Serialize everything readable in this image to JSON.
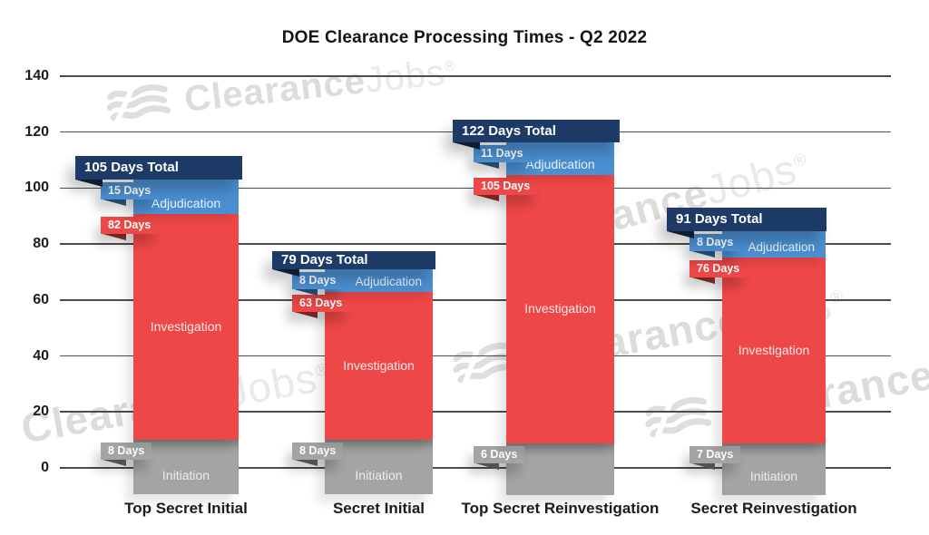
{
  "chart_data": {
    "type": "bar",
    "stacked": true,
    "title": "DOE Clearance Processing Times - Q2 2022",
    "categories": [
      "Top Secret Initial",
      "Secret Initial",
      "Top Secret Reinvestigation",
      "Secret Reinvestigation"
    ],
    "series": [
      {
        "name": "Initiation",
        "color": "#a4a4a4",
        "values": [
          8,
          8,
          6,
          7
        ],
        "values_display": [
          "8 Days",
          "8 Days",
          "6 Days",
          "7 Days"
        ],
        "name_shown_per_bar": [
          true,
          true,
          false,
          true
        ]
      },
      {
        "name": "Investigation",
        "color": "#ee4747",
        "values": [
          82,
          63,
          105,
          76
        ],
        "values_display": [
          "82 Days",
          "63 Days",
          "105 Days",
          "76 Days"
        ],
        "name_shown_per_bar": [
          true,
          true,
          true,
          true
        ]
      },
      {
        "name": "Adjudication",
        "color": "#4a8fd1",
        "values": [
          15,
          8,
          11,
          8
        ],
        "values_display": [
          "15 Days",
          "8 Days",
          "11 Days",
          "8 Days"
        ],
        "name_shown_per_bar": [
          true,
          true,
          true,
          true
        ]
      }
    ],
    "totals": [
      105,
      79,
      122,
      91
    ],
    "totals_display": [
      "105 Days Total",
      "79 Days Total",
      "122 Days Total",
      "91 Days Total"
    ],
    "total_banner_color": "#1e3a66",
    "xlabel": "",
    "ylabel": "",
    "ylim": [
      0,
      140
    ],
    "yticks": [
      0,
      20,
      40,
      60,
      80,
      100,
      120,
      140
    ],
    "grid": true,
    "legend_position": "none"
  },
  "watermark": {
    "part1": "Clearance",
    "part2": "Jobs",
    "registered": "®",
    "logo": "triple-wave-icon"
  }
}
